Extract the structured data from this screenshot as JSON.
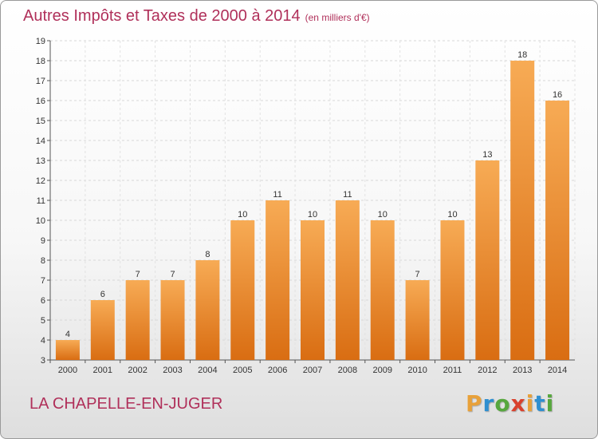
{
  "header": {
    "title": "Autres Impôts et Taxes de 2000 à 2014",
    "subtitle": "(en milliers d'€)"
  },
  "footer": {
    "town": "LA CHAPELLE-EN-JUGER",
    "logo": [
      "P",
      "r",
      "o",
      "x",
      "i",
      "t",
      "i"
    ]
  },
  "colors": {
    "bar": "#f28f2b",
    "bar_light": "#f7ab55",
    "bar_dark": "#d96d12",
    "title": "#b0305a",
    "logo": [
      "#e8a13a",
      "#2f8fd0",
      "#57a73e",
      "#d9412d",
      "#e8a13a",
      "#2f8fd0",
      "#57a73e"
    ]
  },
  "chart_data": {
    "type": "bar",
    "categories": [
      "2000",
      "2001",
      "2002",
      "2003",
      "2004",
      "2005",
      "2006",
      "2007",
      "2008",
      "2009",
      "2010",
      "2011",
      "2012",
      "2013",
      "2014"
    ],
    "values": [
      4,
      6,
      7,
      7,
      8,
      10,
      11,
      10,
      11,
      10,
      7,
      10,
      13,
      18,
      16
    ],
    "title": "Autres Impôts et Taxes de 2000 à 2014",
    "subtitle": "(en milliers d'€)",
    "xlabel": "",
    "ylabel": "",
    "ylim": [
      3,
      19
    ],
    "yticks": [
      3,
      4,
      5,
      6,
      7,
      8,
      9,
      10,
      11,
      12,
      13,
      14,
      15,
      16,
      17,
      18,
      19
    ],
    "grid": true,
    "data_labels": true
  }
}
